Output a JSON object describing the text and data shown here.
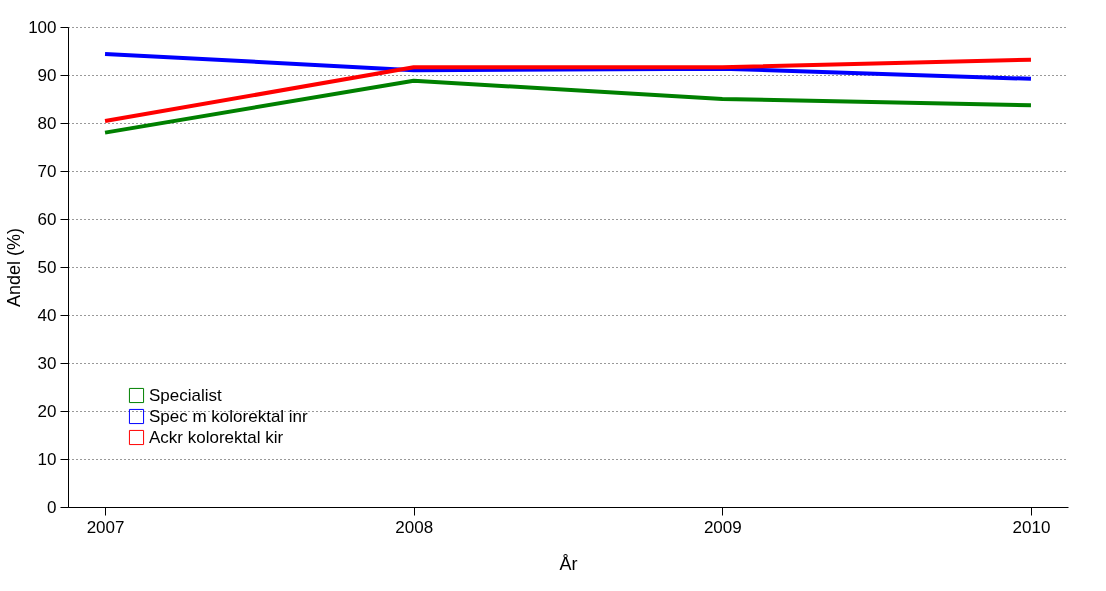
{
  "chart_data": {
    "type": "line",
    "xlabel": "År",
    "ylabel": "Andel (%)",
    "categories": [
      "2007",
      "2008",
      "2009",
      "2010"
    ],
    "series": [
      {
        "name": "Specialist",
        "color": "#008000",
        "values": [
          78,
          88.8,
          85,
          83.7
        ]
      },
      {
        "name": "Spec m kolorektal inr",
        "color": "#0000ff",
        "values": [
          94.4,
          91,
          91.3,
          89.2
        ]
      },
      {
        "name": "Ackr kolorektal kir",
        "color": "#ff0000",
        "values": [
          80.4,
          91.6,
          91.6,
          93.2
        ]
      }
    ],
    "ylim": [
      0,
      100
    ],
    "yticks": [
      0,
      10,
      20,
      30,
      40,
      50,
      60,
      70,
      80,
      90,
      100
    ],
    "grid": "y",
    "legend": "bottom left",
    "line_style": "solid",
    "marker": "none"
  }
}
